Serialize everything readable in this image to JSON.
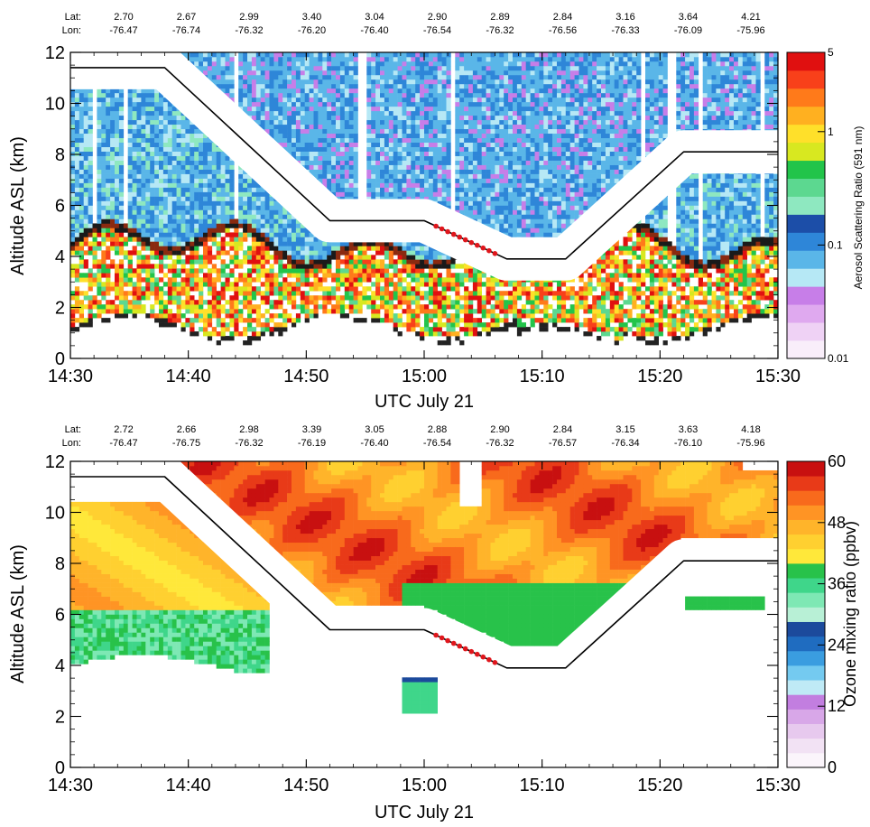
{
  "chart_data": [
    {
      "type": "heatmap",
      "name": "aerosol",
      "xlabel": "UTC July 21",
      "ylabel": "Altitude ASL (km)",
      "colorbar_label": "Aerosol Scattering Ratio (591 nm)",
      "colorbar_ticks": [
        "5",
        "1",
        "0.1",
        "0.01"
      ],
      "colorbar_tick_values": [
        5,
        1,
        0.1,
        0.01
      ],
      "colorbar_scale": "log",
      "xlim": [
        "14:30",
        "15:30"
      ],
      "ylim": [
        0,
        12
      ],
      "x_ticks": [
        "14:30",
        "14:40",
        "14:50",
        "15:00",
        "15:10",
        "15:20",
        "15:30"
      ],
      "y_ticks": [
        "0",
        "2",
        "4",
        "6",
        "8",
        "10",
        "12"
      ],
      "lat_label": "Lat:",
      "lon_label": "Lon:",
      "lat": [
        "2.70",
        "2.67",
        "2.99",
        "3.40",
        "3.04",
        "2.90",
        "2.89",
        "2.84",
        "3.16",
        "3.64",
        "4.21"
      ],
      "lon": [
        "-76.47",
        "-76.74",
        "-76.32",
        "-76.20",
        "-76.40",
        "-76.54",
        "-76.32",
        "-76.56",
        "-76.33",
        "-76.09",
        "-75.96"
      ],
      "flight_altitude": {
        "x": [
          "14:30",
          "14:38",
          "14:52",
          "15:00",
          "15:07",
          "15:12",
          "15:22",
          "15:30"
        ],
        "y": [
          11.4,
          11.4,
          5.4,
          5.4,
          3.9,
          3.9,
          8.1,
          8.1
        ]
      },
      "highlight_segment": {
        "x": [
          "15:01",
          "15:06"
        ],
        "y": [
          5.3,
          4.3
        ],
        "color": "#e0161c"
      },
      "grid": false
    },
    {
      "type": "heatmap",
      "name": "ozone",
      "xlabel": "UTC July 21",
      "ylabel": "Altitude ASL (km)",
      "colorbar_label": "Ozone mixing ratio (ppbv)",
      "colorbar_ticks": [
        "60",
        "48",
        "36",
        "24",
        "12",
        "0"
      ],
      "colorbar_tick_values": [
        60,
        48,
        36,
        24,
        12,
        0
      ],
      "colorbar_scale": "linear",
      "xlim": [
        "14:30",
        "15:30"
      ],
      "ylim": [
        0,
        12
      ],
      "x_ticks": [
        "14:30",
        "14:40",
        "14:50",
        "15:00",
        "15:10",
        "15:20",
        "15:30"
      ],
      "y_ticks": [
        "0",
        "2",
        "4",
        "6",
        "8",
        "10",
        "12"
      ],
      "lat_label": "Lat:",
      "lon_label": "Lon:",
      "lat": [
        "2.72",
        "2.66",
        "2.98",
        "3.39",
        "3.05",
        "2.88",
        "2.90",
        "2.84",
        "3.15",
        "3.63",
        "4.18"
      ],
      "lon": [
        "-76.47",
        "-76.75",
        "-76.32",
        "-76.19",
        "-76.40",
        "-76.54",
        "-76.32",
        "-76.57",
        "-76.34",
        "-76.10",
        "-75.96"
      ],
      "flight_altitude": {
        "x": [
          "14:30",
          "14:38",
          "14:52",
          "15:00",
          "15:07",
          "15:12",
          "15:22",
          "15:30"
        ],
        "y": [
          11.4,
          11.4,
          5.4,
          5.4,
          3.9,
          3.9,
          8.1,
          8.1
        ]
      },
      "highlight_segment": {
        "x": [
          "15:01",
          "15:06"
        ],
        "y": [
          5.3,
          4.3
        ],
        "color": "#e0161c"
      },
      "grid": false
    }
  ],
  "colors": {
    "aerosol_scale": [
      "#f9eefa",
      "#efd2f5",
      "#dfa9ef",
      "#c77ee8",
      "#b6e8f5",
      "#5ab6e8",
      "#2e86d8",
      "#1c4ea8",
      "#8ee8c0",
      "#5cd890",
      "#22c44a",
      "#d8e820",
      "#ffe02a",
      "#ffb020",
      "#ff7a1a",
      "#f8401a",
      "#e01010"
    ],
    "ozone_scale": [
      "#fbf5fb",
      "#f2e2f4",
      "#e7c9ee",
      "#d8a7e8",
      "#c27ee0",
      "#bfeaf6",
      "#74caf0",
      "#3a9de0",
      "#1f6cc0",
      "#1c4a9c",
      "#b8f0d6",
      "#7ee8b4",
      "#3fd68a",
      "#28c24a",
      "#ffe83a",
      "#ffd030",
      "#ffb42a",
      "#ff9424",
      "#f86a1c",
      "#e83a18",
      "#c81010"
    ],
    "flight_line": "#000000",
    "highlight": "#e0161c"
  }
}
